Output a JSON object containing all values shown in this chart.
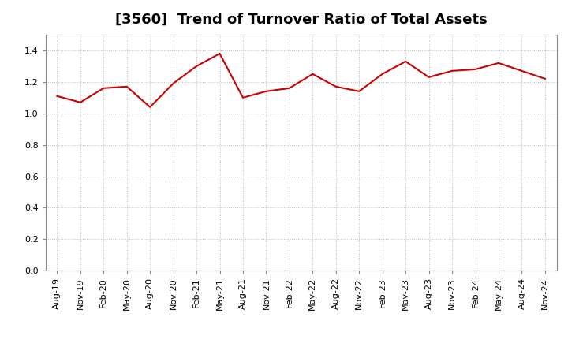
{
  "title": "[3560]  Trend of Turnover Ratio of Total Assets",
  "x_labels": [
    "Aug-19",
    "Nov-19",
    "Feb-20",
    "May-20",
    "Aug-20",
    "Nov-20",
    "Feb-21",
    "May-21",
    "Aug-21",
    "Nov-21",
    "Feb-22",
    "May-22",
    "Aug-22",
    "Nov-22",
    "Feb-23",
    "May-23",
    "Aug-23",
    "Nov-23",
    "Feb-24",
    "May-24",
    "Aug-24",
    "Nov-24"
  ],
  "y_values": [
    1.11,
    1.07,
    1.16,
    1.17,
    1.04,
    1.19,
    1.3,
    1.38,
    1.1,
    1.14,
    1.16,
    1.25,
    1.17,
    1.14,
    1.25,
    1.33,
    1.23,
    1.27,
    1.28,
    1.32,
    1.27,
    1.22
  ],
  "line_color": "#cc0000",
  "line_width": 1.5,
  "ylim": [
    0.0,
    1.5
  ],
  "yticks": [
    0.0,
    0.2,
    0.4,
    0.6,
    0.8,
    1.0,
    1.2,
    1.4
  ],
  "grid_color": "#bbbbbb",
  "background_color": "#ffffff",
  "plot_bg_color": "#ffffff",
  "title_fontsize": 13,
  "tick_fontsize": 8
}
